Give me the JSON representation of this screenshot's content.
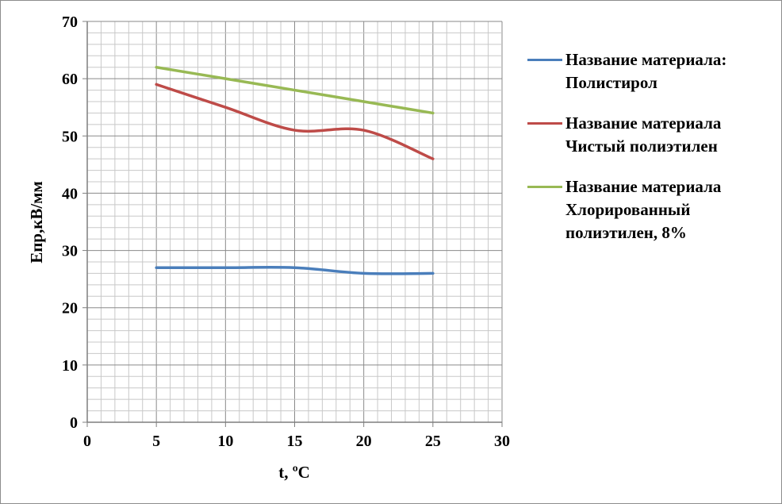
{
  "chart_data": {
    "type": "line",
    "title": "",
    "xlabel": "t, ºС",
    "ylabel": "Епр,кВ/мм",
    "xlim": [
      0,
      30
    ],
    "ylim": [
      0,
      70
    ],
    "x_ticks": [
      0,
      5,
      10,
      15,
      20,
      25,
      30
    ],
    "y_ticks": [
      0,
      10,
      20,
      30,
      40,
      50,
      60,
      70
    ],
    "grid": true,
    "legend_position": "right",
    "series": [
      {
        "name": "Название материала:\nПолистирол",
        "color": "#4a7ebb",
        "x": [
          5,
          10,
          15,
          20,
          25
        ],
        "y": [
          27,
          27,
          27,
          26,
          26
        ]
      },
      {
        "name": "Название материала\nЧистый полиэтилен",
        "color": "#be4b48",
        "x": [
          5,
          10,
          15,
          20,
          25
        ],
        "y": [
          59,
          55,
          51,
          51,
          46
        ]
      },
      {
        "name": "Название материала\nХлорированный\nполиэтилен, 8%",
        "color": "#98b954",
        "x": [
          5,
          10,
          15,
          20,
          25
        ],
        "y": [
          62,
          60,
          58,
          56,
          54
        ]
      }
    ]
  }
}
